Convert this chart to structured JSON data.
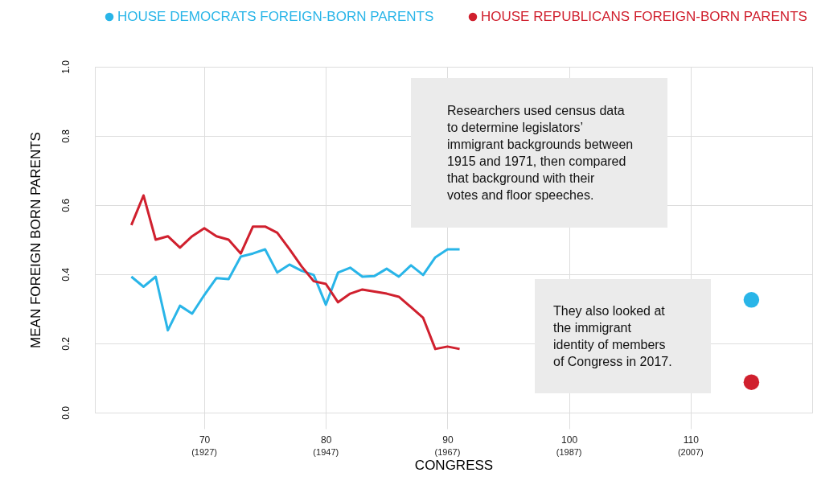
{
  "chart_data": {
    "type": "line",
    "xlabel": "CONGRESS",
    "ylabel": "MEAN FOREIGN BORN PARENTS",
    "xlim": [
      61,
      120
    ],
    "xticks": [
      70,
      80,
      90,
      100,
      110
    ],
    "ylim": [
      0,
      1
    ],
    "yticks": [
      {
        "value": 0,
        "label": "0.0"
      },
      0.2,
      0.4,
      0.6,
      0.8,
      {
        "value": 1,
        "label": "1.0"
      }
    ],
    "grid": true,
    "legend": "top",
    "marker": "none",
    "line_style": "solid",
    "series": [
      {
        "name": "HOUSE DEMOCRATS FOREIGN-BORN PARENTS",
        "color": "#29b5e8",
        "x": [
          64,
          65,
          66,
          67,
          68,
          69,
          70,
          71,
          72,
          73,
          74,
          75,
          76,
          77,
          78,
          79,
          80,
          81,
          82,
          83,
          84,
          85,
          86,
          87,
          88,
          89,
          90,
          91
        ],
        "values": [
          0.393,
          0.364,
          0.393,
          0.238,
          0.309,
          0.286,
          0.34,
          0.389,
          0.386,
          0.451,
          0.46,
          0.472,
          0.405,
          0.428,
          0.41,
          0.398,
          0.312,
          0.405,
          0.419,
          0.393,
          0.395,
          0.416,
          0.393,
          0.426,
          0.398,
          0.449,
          0.472,
          0.472
        ]
      },
      {
        "name": "HOUSE REPUBLICANS FOREIGN-BORN PARENTS",
        "color": "#d0202e",
        "x": [
          64,
          65,
          66,
          67,
          68,
          69,
          70,
          71,
          72,
          73,
          74,
          75,
          76,
          77,
          78,
          79,
          80,
          81,
          82,
          83,
          84,
          85,
          86,
          87,
          88,
          89,
          90,
          91
        ],
        "values": [
          0.542,
          0.628,
          0.5,
          0.51,
          0.477,
          0.51,
          0.533,
          0.51,
          0.5,
          0.46,
          0.538,
          0.538,
          0.52,
          0.473,
          0.423,
          0.38,
          0.372,
          0.319,
          0.344,
          0.356,
          0.35,
          0.344,
          0.335,
          0.305,
          0.274,
          0.184,
          0.191,
          0.184
        ]
      },
      {
        "type": "scatter",
        "marker": "circle",
        "color": "#29b5e8",
        "x": [
          115
        ],
        "values": [
          0.326
        ]
      },
      {
        "type": "scatter",
        "marker": "circle",
        "color": "#d0202e",
        "x": [
          115
        ],
        "values": [
          0.088
        ]
      }
    ],
    "annotations": [
      "Researchers used census data to determine legislators’ immigrant backgrounds between 1915 and 1971, then compared that background with their votes and floor speeches.",
      "They also looked at the immigrant identity of members of Congress in 2017.",
      "(1927)",
      "(1947)",
      "(1967)",
      "(1987)",
      "(2007)"
    ]
  }
}
